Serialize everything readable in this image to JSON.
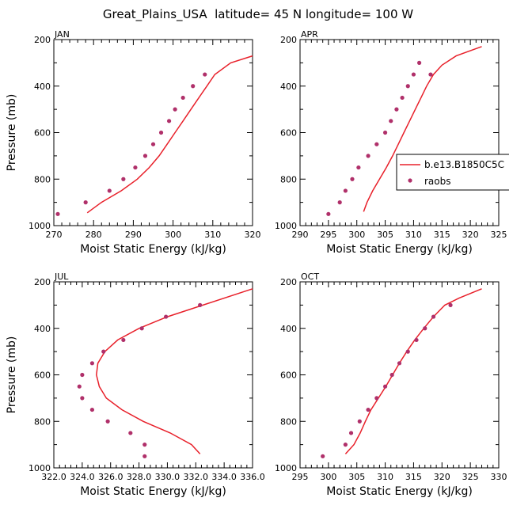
{
  "page": {
    "title": "Great_Plains_USA  latitude= 45 N longitude= 100 W"
  },
  "colors": {
    "model_line": "#e8202a",
    "obs_marker": "#b0306a",
    "axes": "#000000"
  },
  "legend": {
    "panel": 1,
    "entries": [
      {
        "label": "b.e13.B1850C5C",
        "kind": "line"
      },
      {
        "label": "raobs",
        "kind": "marker"
      }
    ]
  },
  "chart_data": [
    {
      "type": "line",
      "title": "JAN",
      "xlabel": "Moist Static Energy (kJ/kg)",
      "ylabel": "Pressure (mb)",
      "xlim": [
        270,
        320
      ],
      "ylim": [
        1000,
        200
      ],
      "yscale": "inverted",
      "xticks": [
        270,
        280,
        290,
        300,
        310,
        320
      ],
      "xtick_labels": [
        "270",
        "280",
        "290",
        "300",
        "310",
        "320"
      ],
      "yticks": [
        200,
        400,
        600,
        800,
        1000
      ],
      "ytick_labels": [
        "200",
        "400",
        "600",
        "800",
        "1000"
      ],
      "series": [
        {
          "name": "b.e13.B1850C5C",
          "style": "line",
          "x": [
            278.4,
            282,
            287,
            291,
            294,
            296.5,
            298.5,
            300.5,
            302.5,
            304.5,
            306.5,
            308.5,
            310.5,
            314.5,
            320
          ],
          "y": [
            945,
            900,
            850,
            800,
            750,
            700,
            650,
            600,
            550,
            500,
            450,
            400,
            350,
            300,
            270
          ]
        },
        {
          "name": "raobs",
          "style": "marker",
          "x": [
            271,
            278,
            284,
            287.5,
            290.5,
            293,
            295,
            297,
            299,
            300.5,
            302.5,
            305,
            308
          ],
          "y": [
            950,
            900,
            850,
            800,
            750,
            700,
            650,
            600,
            550,
            500,
            450,
            400,
            350
          ]
        }
      ]
    },
    {
      "type": "line",
      "title": "APR",
      "xlabel": "Moist Static Energy (kJ/kg)",
      "ylabel": "",
      "xlim": [
        290,
        325
      ],
      "ylim": [
        1000,
        200
      ],
      "yscale": "inverted",
      "xticks": [
        290,
        295,
        300,
        305,
        310,
        315,
        320,
        325
      ],
      "xtick_labels": [
        "290",
        "295",
        "300",
        "305",
        "310",
        "315",
        "320",
        "325"
      ],
      "yticks": [
        200,
        400,
        600,
        800,
        1000
      ],
      "ytick_labels": [
        "200",
        "400",
        "600",
        "800",
        "1000"
      ],
      "series": [
        {
          "name": "b.e13.B1850C5C",
          "style": "line",
          "x": [
            301.2,
            301.8,
            302.8,
            304,
            305.2,
            306.3,
            307.3,
            308.3,
            309.3,
            310.3,
            311.3,
            312.3,
            313.5,
            315,
            317.5,
            322
          ],
          "y": [
            940,
            900,
            850,
            800,
            750,
            700,
            650,
            600,
            550,
            500,
            450,
            400,
            350,
            310,
            270,
            230
          ]
        },
        {
          "name": "raobs",
          "style": "marker",
          "x": [
            295,
            297,
            298,
            299.2,
            300.3,
            302,
            303.5,
            305,
            306,
            307,
            308,
            309,
            310,
            311,
            313
          ],
          "y": [
            950,
            900,
            850,
            800,
            750,
            700,
            650,
            600,
            550,
            500,
            450,
            400,
            350,
            300,
            350
          ]
        }
      ]
    },
    {
      "type": "line",
      "title": "JUL",
      "xlabel": "Moist Static Energy (kJ/kg)",
      "ylabel": "Pressure (mb)",
      "xlim": [
        322.0,
        336.0
      ],
      "ylim": [
        1000,
        200
      ],
      "yscale": "inverted",
      "xticks": [
        322.0,
        324.0,
        326.0,
        328.0,
        330.0,
        332.0,
        334.0,
        336.0
      ],
      "xtick_labels": [
        "322.0",
        "324.0",
        "326.0",
        "328.0",
        "330.0",
        "332.0",
        "334.0",
        "336.0"
      ],
      "yticks": [
        200,
        400,
        600,
        800,
        1000
      ],
      "ytick_labels": [
        "200",
        "400",
        "600",
        "800",
        "1000"
      ],
      "series": [
        {
          "name": "b.e13.B1850C5C",
          "style": "line",
          "x": [
            332.3,
            331.7,
            330.2,
            328.3,
            326.8,
            325.7,
            325.2,
            325.0,
            325.1,
            325.6,
            326.5,
            328.0,
            330.0,
            332.5,
            336.0
          ],
          "y": [
            940,
            900,
            850,
            800,
            750,
            700,
            650,
            600,
            550,
            500,
            450,
            400,
            350,
            300,
            230
          ]
        },
        {
          "name": "raobs",
          "style": "marker",
          "x": [
            328.4,
            328.4,
            327.4,
            325.8,
            324.7,
            324.0,
            323.8,
            324.0,
            324.7,
            325.5,
            326.9,
            328.2,
            329.9,
            332.3
          ],
          "y": [
            950,
            900,
            850,
            800,
            750,
            700,
            650,
            600,
            550,
            500,
            450,
            400,
            350,
            300
          ]
        }
      ]
    },
    {
      "type": "line",
      "title": "OCT",
      "xlabel": "Moist Static Energy (kJ/kg)",
      "ylabel": "",
      "xlim": [
        295,
        330
      ],
      "ylim": [
        1000,
        200
      ],
      "yscale": "inverted",
      "xticks": [
        295,
        300,
        305,
        310,
        315,
        320,
        325,
        330
      ],
      "xtick_labels": [
        "295",
        "300",
        "305",
        "310",
        "315",
        "320",
        "325",
        "330"
      ],
      "yticks": [
        200,
        400,
        600,
        800,
        1000
      ],
      "ytick_labels": [
        "200",
        "400",
        "600",
        "800",
        "1000"
      ],
      "series": [
        {
          "name": "b.e13.B1850C5C",
          "style": "line",
          "x": [
            303,
            304.5,
            305.6,
            306.5,
            307.5,
            308.8,
            310.1,
            311.3,
            312.5,
            313.8,
            315.2,
            316.8,
            318.5,
            320.5,
            323,
            327
          ],
          "y": [
            940,
            900,
            850,
            800,
            750,
            700,
            650,
            600,
            550,
            500,
            450,
            400,
            350,
            300,
            270,
            230
          ]
        },
        {
          "name": "raobs",
          "style": "marker",
          "x": [
            299,
            303,
            304,
            305.5,
            307,
            308.5,
            310,
            311.2,
            312.5,
            314,
            315.5,
            317,
            318.5,
            321.5
          ],
          "y": [
            950,
            900,
            850,
            800,
            750,
            700,
            650,
            600,
            550,
            500,
            450,
            400,
            350,
            300
          ]
        }
      ]
    }
  ]
}
